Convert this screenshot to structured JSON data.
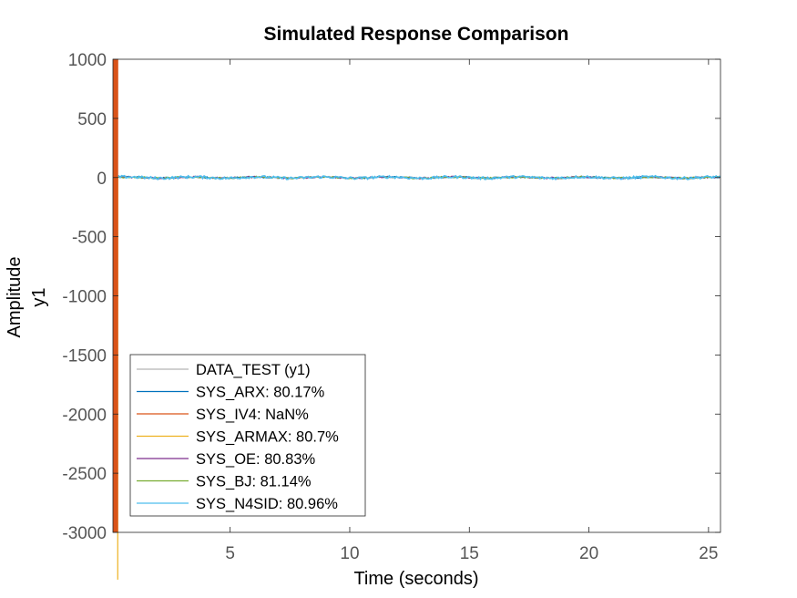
{
  "chart_data": {
    "type": "line",
    "title": "Simulated Response Comparison",
    "xlabel": "Time (seconds)",
    "ylabel": "Amplitude",
    "ylabel2": "y1",
    "xlim": [
      0.1,
      25.5
    ],
    "ylim": [
      -3000,
      1000
    ],
    "xticks": [
      5,
      10,
      15,
      20,
      25
    ],
    "yticks": [
      1000,
      500,
      0,
      -500,
      -1000,
      -1500,
      -2000,
      -2500,
      -3000
    ],
    "grid": false,
    "legend_position": "bottom-left",
    "series": [
      {
        "name": "DATA_TEST (y1)",
        "color": "#b3b3b3",
        "style": "noise",
        "level": 0,
        "amplitude": 12
      },
      {
        "name": "SYS_ARX: 80.17%",
        "color": "#0072BD",
        "style": "noise",
        "level": 0,
        "amplitude": 10
      },
      {
        "name": "SYS_IV4: NaN%",
        "color": "#D95319",
        "style": "oscillation",
        "x_range": [
          0.1,
          0.3
        ],
        "y_range": [
          -3000,
          1000
        ]
      },
      {
        "name": "SYS_ARMAX: 80.7%",
        "color": "#EDB120",
        "style": "spike",
        "x": 0.3,
        "y_range": [
          -3400,
          0
        ]
      },
      {
        "name": "SYS_OE: 80.83%",
        "color": "#7E2F8E",
        "style": "noise",
        "level": 0,
        "amplitude": 10
      },
      {
        "name": "SYS_BJ: 81.14%",
        "color": "#77AC30",
        "style": "noise",
        "level": 0,
        "amplitude": 10
      },
      {
        "name": "SYS_N4SID: 80.96%",
        "color": "#4DBEEE",
        "style": "noise",
        "level": 0,
        "amplitude": 14
      }
    ]
  }
}
